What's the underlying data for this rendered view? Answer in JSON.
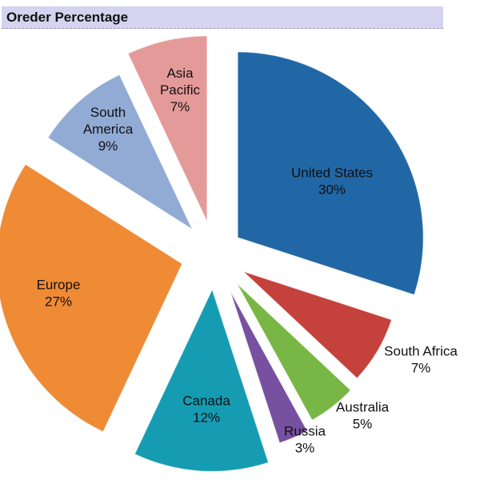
{
  "header": {
    "title": "Oreder Percentage"
  },
  "chart_data": {
    "type": "pie",
    "title": "Oreder Percentage",
    "exploded": true,
    "slices": [
      {
        "label": "United States",
        "value": 30,
        "display": "30%",
        "color": "#2167a6",
        "label_inside": true
      },
      {
        "label": "South Africa",
        "value": 7,
        "display": "7%",
        "color": "#c5413c",
        "label_inside": false
      },
      {
        "label": "Australia",
        "value": 5,
        "display": "5%",
        "color": "#78b646",
        "label_inside": false
      },
      {
        "label": "Russia",
        "value": 3,
        "display": "3%",
        "color": "#7750a0",
        "label_inside": false
      },
      {
        "label": "Canada",
        "value": 12,
        "display": "12%",
        "color": "#159cb2",
        "label_inside": true
      },
      {
        "label": "Europe",
        "value": 27,
        "display": "27%",
        "color": "#ef8a35",
        "label_inside": true
      },
      {
        "label": "South America",
        "value": 9,
        "display": "9%",
        "color": "#91abd5",
        "label_inside": true
      },
      {
        "label": "Asia Pacific",
        "value": 7,
        "display": "7%",
        "color": "#e59a9a",
        "label_inside": true
      }
    ]
  }
}
